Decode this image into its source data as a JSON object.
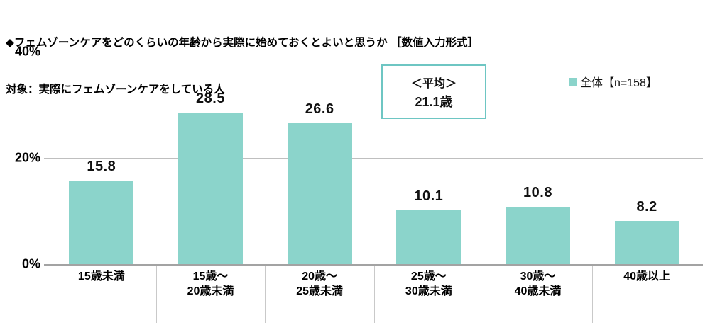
{
  "header": {
    "title": "◆フェムゾーンケアをどのくらいの年齢から実際に始めておくとよいと思うか ［数値入力形式］",
    "target": "対象：実際にフェムゾーンケアをしている人"
  },
  "legend": {
    "label": "全体【n=158】",
    "swatch_color": "#8bd4cb"
  },
  "annotation": {
    "line1": "＜平均＞",
    "line2": "21.1歳"
  },
  "colors": {
    "bar": "#8bd4cb",
    "avg_box_border": "#6ec6c3",
    "gridline": "#bfbfbf",
    "axis": "#a3a3a3"
  },
  "chart_data": {
    "type": "bar",
    "categories": [
      "15歳未満",
      "15歳～\n20歳未満",
      "20歳～\n25歳未満",
      "25歳～\n30歳未満",
      "30歳～\n40歳未満",
      "40歳以上"
    ],
    "values": [
      15.8,
      28.5,
      26.6,
      10.1,
      10.8,
      8.2
    ],
    "title": "フェムゾーンケアをどのくらいの年齢から実際に始めておくとよいと思うか",
    "xlabel": "",
    "ylabel": "",
    "ylim": [
      0,
      40
    ],
    "yticks": [
      {
        "value": 0,
        "label": "0%"
      },
      {
        "value": 20,
        "label": "20%"
      },
      {
        "value": 40,
        "label": "40%"
      }
    ],
    "grid": "horizontal",
    "legend_position": "top-right",
    "legend_entries": [
      "全体【n=158】"
    ],
    "annotations": [
      "＜平均＞ 21.1歳"
    ],
    "bar_color": "#8bd4cb"
  }
}
